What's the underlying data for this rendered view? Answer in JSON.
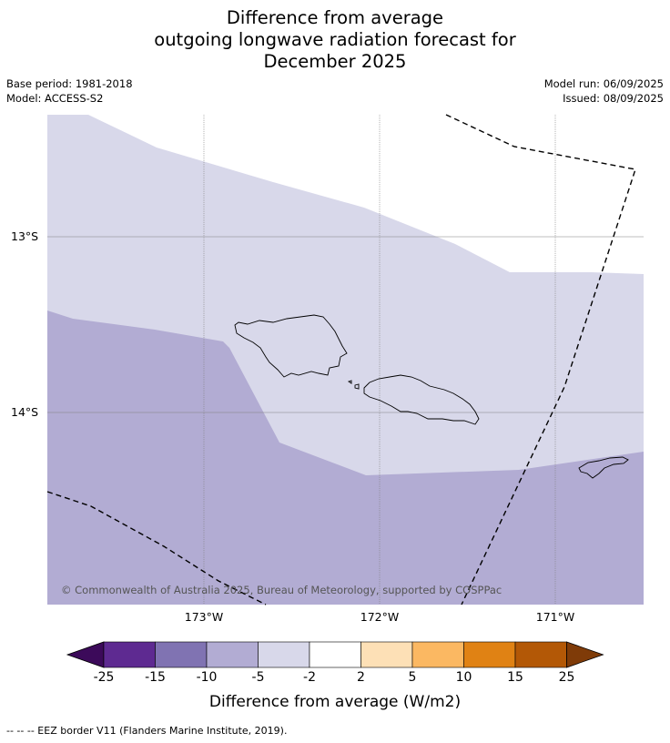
{
  "title": {
    "line1": "Difference from average",
    "line2": "outgoing longwave radiation forecast for",
    "line3": "December 2025"
  },
  "meta": {
    "base_period": "Base period: 1981-2018",
    "model": "Model: ACCESS-S2",
    "model_run": "Model run: 06/09/2025",
    "issued": "Issued: 08/09/2025"
  },
  "map": {
    "lat_labels": [
      "13°S",
      "14°S"
    ],
    "lon_labels": [
      "173°W",
      "172°W",
      "171°W"
    ],
    "copyright": "© Commonwealth of Australia 2025, Bureau of Meteorology, supported by COSPPac",
    "colors": {
      "band_minus5_minus2": "#d8d8ea",
      "band_minus10_minus5": "#b2acd3"
    }
  },
  "colorbar": {
    "ticks": [
      "-25",
      "-15",
      "-10",
      "-5",
      "-2",
      "2",
      "5",
      "10",
      "15",
      "25"
    ],
    "colors": [
      "#3c0a5a",
      "#5e2a91",
      "#8073b2",
      "#b2acd3",
      "#d8d8ea",
      "#ffffff",
      "#fde0b6",
      "#fbb862",
      "#e08214",
      "#b35806",
      "#7f3b08"
    ],
    "label": "Difference from average (W/m2)"
  },
  "footnote": "-- -- -- EEZ border V11 (Flanders Marine Institute, 2019)."
}
